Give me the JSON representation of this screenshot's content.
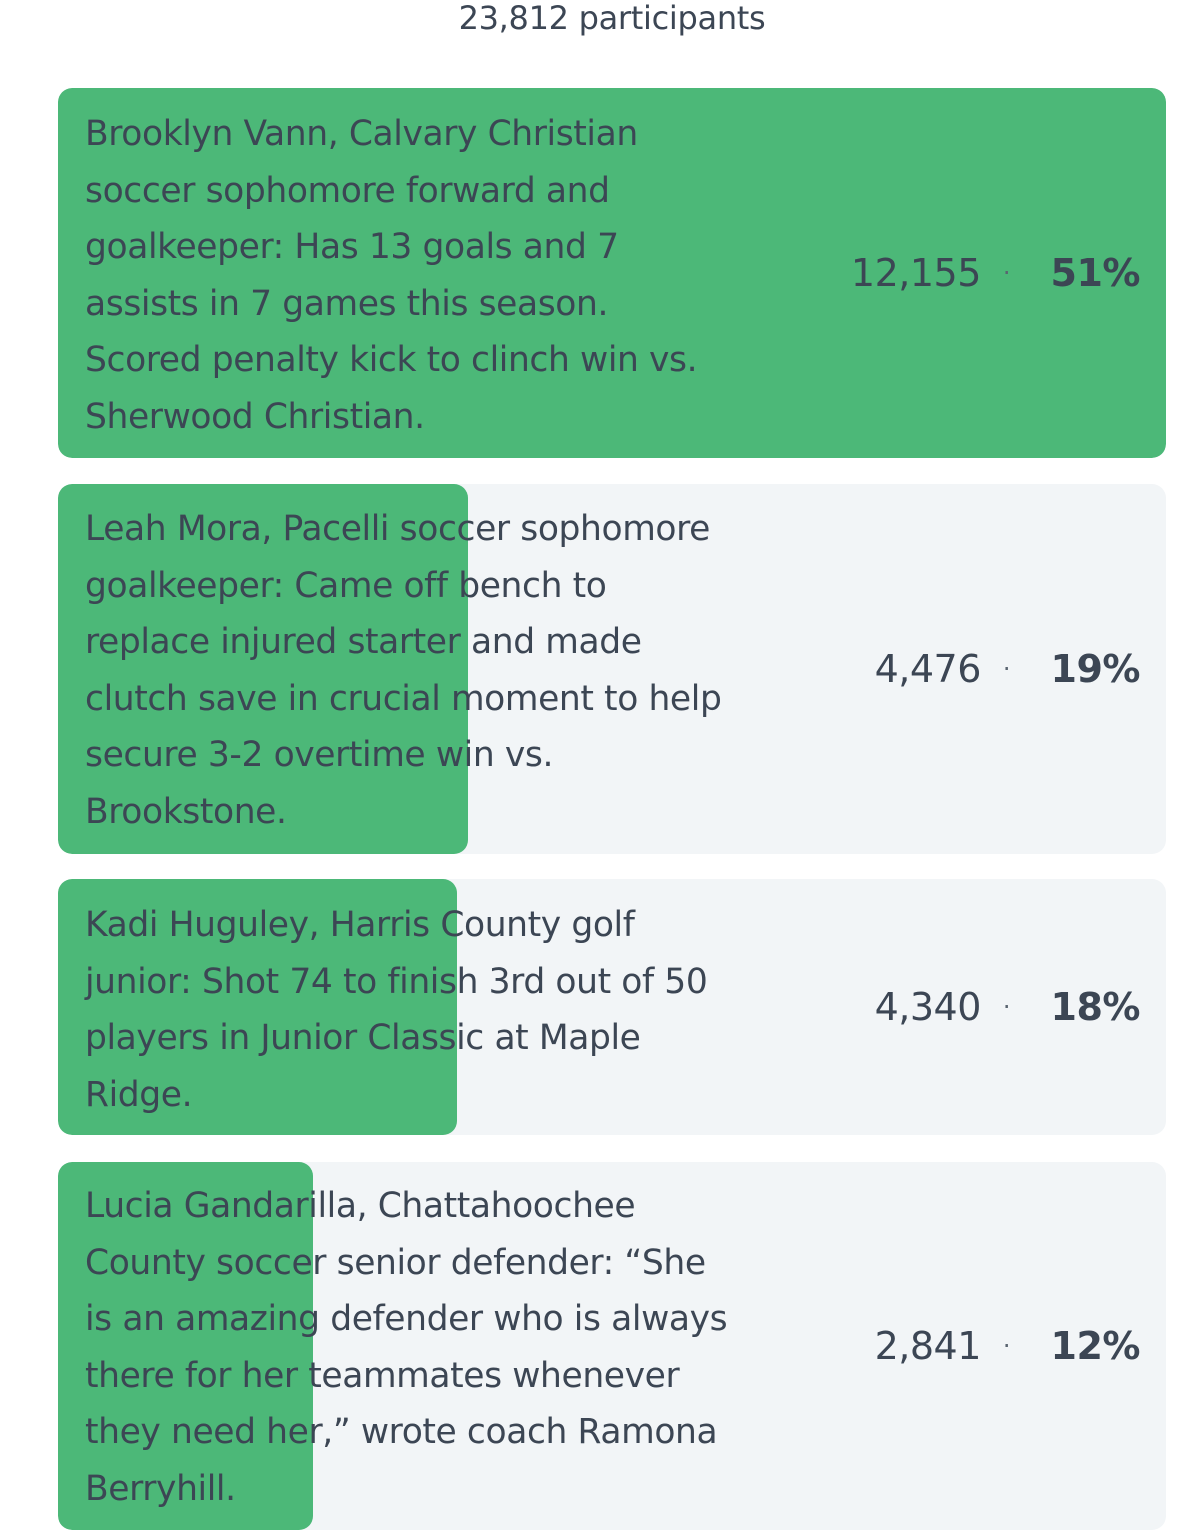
{
  "poll": {
    "participants_text": "23,812 participants",
    "options": [
      {
        "label": "Brooklyn Vann, Calvary Christian\nsoccer sophomore forward and\ngoalkeeper: Has 13 goals and 7\nassists in 7 games this season.\nScored penalty kick to clinch win vs.\nSherwood Christian.",
        "votes": "12,155",
        "separator": "·",
        "percent": "51%",
        "share": 1.0
      },
      {
        "label": "Leah Mora, Pacelli soccer sophomore\ngoalkeeper: Came off bench to\nreplace injured starter and made\nclutch save in crucial moment to help\nsecure 3-2 overtime win vs.\nBrookstone.",
        "votes": "4,476",
        "separator": "·",
        "percent": "19%",
        "share": 0.37
      },
      {
        "label": "Kadi Huguley, Harris County golf\njunior: Shot 74 to finish 3rd out of 50\nplayers in Junior Classic at Maple\nRidge.",
        "votes": "4,340",
        "separator": "·",
        "percent": "18%",
        "share": 0.36
      },
      {
        "label": "Lucia Gandarilla, Chattahoochee\nCounty soccer senior defender: “She\nis an amazing defender who is always\nthere for her teammates whenever\nthey need her,” wrote coach Ramona\nBerryhill.",
        "votes": "2,841",
        "separator": "·",
        "percent": "12%",
        "share": 0.23
      }
    ]
  },
  "colors": {
    "fill": "#4cb878",
    "track": "#f2f5f7",
    "text": "#3c4654"
  }
}
